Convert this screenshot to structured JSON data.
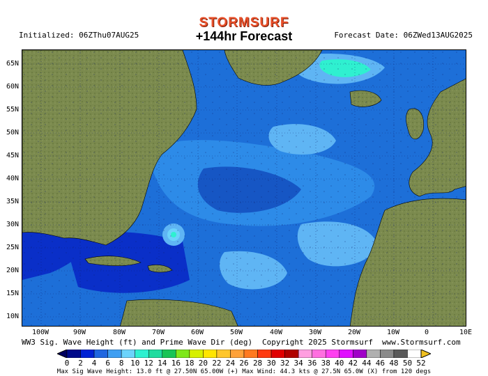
{
  "header": {
    "brand": "STORMSURF",
    "initialized": "Initialized: 06ZThu07AUG25",
    "title": "+144hr Forecast",
    "forecast_date": "Forecast Date: 06ZWed13AUG2025"
  },
  "lat_labels": [
    "65N",
    "60N",
    "55N",
    "50N",
    "45N",
    "40N",
    "35N",
    "30N",
    "25N",
    "20N",
    "15N",
    "10N"
  ],
  "lon_labels": [
    "100W",
    "90W",
    "80W",
    "70W",
    "60W",
    "50W",
    "40W",
    "30W",
    "20W",
    "10W",
    "0",
    "10E"
  ],
  "footer": {
    "left": "WW3 Sig. Wave Height (ft) and Prime Wave Dir (deg)",
    "center": "Copyright 2025 Stormsurf",
    "right": "www.Stormsurf.com"
  },
  "colorbar": {
    "labels": [
      "0",
      "2",
      "4",
      "6",
      "8",
      "10",
      "12",
      "14",
      "16",
      "18",
      "20",
      "22",
      "24",
      "26",
      "28",
      "30",
      "32",
      "34",
      "36",
      "38",
      "40",
      "42",
      "44",
      "46",
      "48",
      "50",
      "52"
    ],
    "colors": [
      "#000a8a",
      "#0022d4",
      "#1f66e0",
      "#3f9ff2",
      "#6cd3fb",
      "#2ff0d0",
      "#1fdc9f",
      "#18c455",
      "#7fe81a",
      "#d7f000",
      "#ffe500",
      "#ffc62b",
      "#ffa23a",
      "#ff7a20",
      "#ff3a10",
      "#e10000",
      "#b00000",
      "#ff9ee0",
      "#ff6fe0",
      "#ff40f0",
      "#e010ff",
      "#a000c8",
      "#b0b0b0",
      "#8a8a8a",
      "#5a5a5a",
      "#ffffff"
    ]
  },
  "stats": "Max Sig Wave Height: 13.0 ft @ 27.50N 65.00W (+)   Max Wind: 44.3 kts @ 27.5N 65.0W (X) from 120 degs"
}
